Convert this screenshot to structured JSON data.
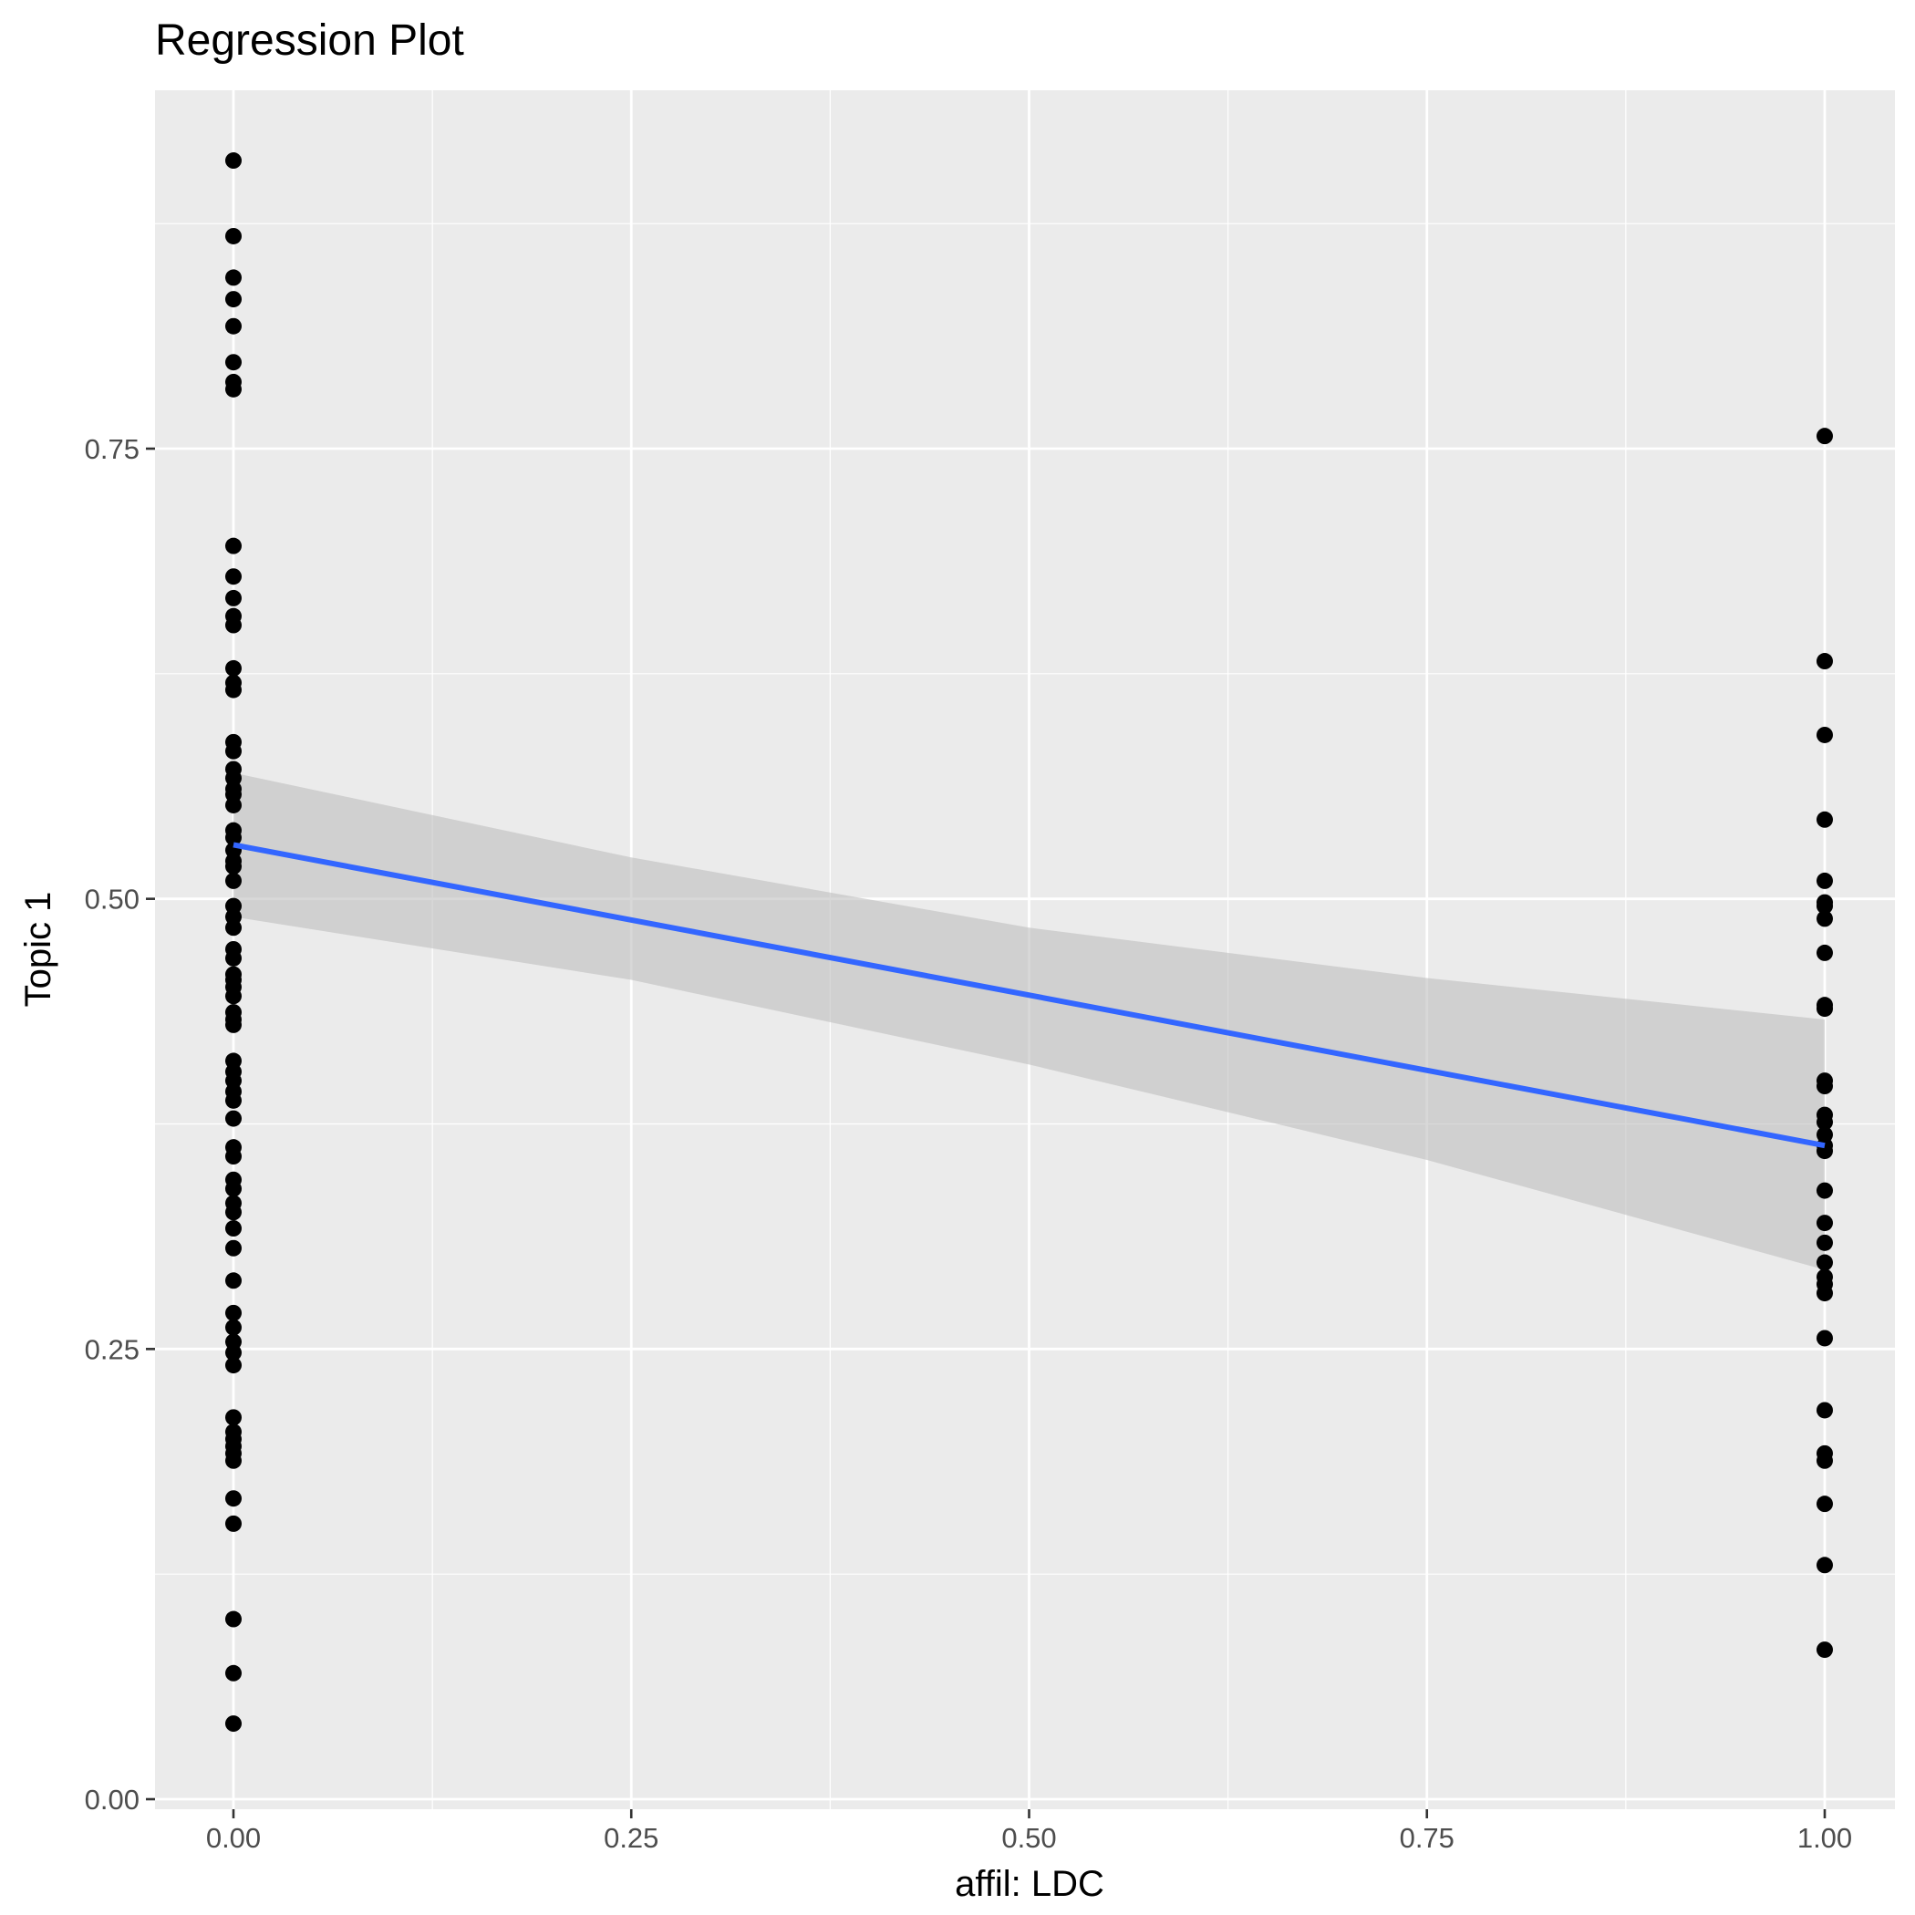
{
  "chart_data": {
    "type": "scatter",
    "title": "Regression Plot",
    "xlabel": "affil: LDC",
    "ylabel": "Topic 1",
    "xlim": [
      -0.05,
      1.05
    ],
    "ylim": [
      -0.005,
      0.95
    ],
    "x_ticks": [
      "0.00",
      "0.25",
      "0.50",
      "0.75",
      "1.00"
    ],
    "y_ticks": [
      "0.00",
      "0.25",
      "0.50",
      "0.75"
    ],
    "grid": true,
    "colors": {
      "panel": "#EBEBEB",
      "grid": "#FFFFFF",
      "points": "#000000",
      "fit_line": "#3366FF",
      "ribbon": "#BEBEBE"
    },
    "series": [
      {
        "x": 0,
        "values": [
          0.91,
          0.868,
          0.845,
          0.833,
          0.818,
          0.798,
          0.787,
          0.783,
          0.696,
          0.679,
          0.667,
          0.657,
          0.652,
          0.628,
          0.62,
          0.616,
          0.587,
          0.582,
          0.572,
          0.567,
          0.561,
          0.558,
          0.552,
          0.538,
          0.534,
          0.527,
          0.521,
          0.518,
          0.51,
          0.496,
          0.49,
          0.484,
          0.472,
          0.467,
          0.458,
          0.455,
          0.451,
          0.446,
          0.437,
          0.433,
          0.43,
          0.41,
          0.404,
          0.399,
          0.393,
          0.388,
          0.378,
          0.362,
          0.357,
          0.344,
          0.339,
          0.331,
          0.326,
          0.317,
          0.306,
          0.288,
          0.27,
          0.262,
          0.254,
          0.248,
          0.241,
          0.212,
          0.204,
          0.2,
          0.196,
          0.192,
          0.188,
          0.167,
          0.153,
          0.1,
          0.07,
          0.042
        ]
      },
      {
        "x": 1,
        "values": [
          0.757,
          0.632,
          0.591,
          0.544,
          0.51,
          0.498,
          0.496,
          0.489,
          0.47,
          0.441,
          0.439,
          0.399,
          0.396,
          0.38,
          0.376,
          0.369,
          0.363,
          0.36,
          0.338,
          0.32,
          0.309,
          0.298,
          0.29,
          0.286,
          0.281,
          0.256,
          0.216,
          0.192,
          0.188,
          0.164,
          0.13,
          0.083
        ]
      }
    ],
    "fit": {
      "x": [
        0,
        1
      ],
      "y": [
        0.53,
        0.363
      ]
    },
    "confidence_band": {
      "x": [
        0,
        0.25,
        0.5,
        0.75,
        1
      ],
      "lower": [
        0.49,
        0.455,
        0.408,
        0.355,
        0.294
      ],
      "upper": [
        0.57,
        0.523,
        0.484,
        0.456,
        0.433
      ]
    }
  }
}
